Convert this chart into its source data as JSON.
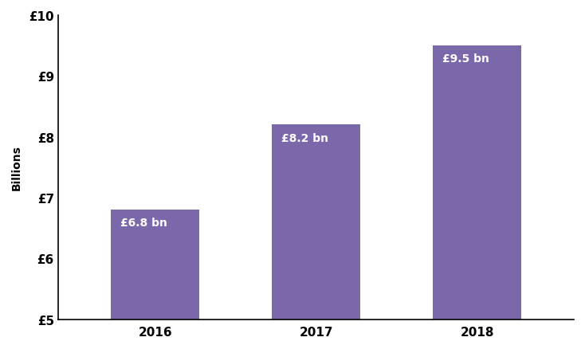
{
  "categories": [
    "2016",
    "2017",
    "2018"
  ],
  "values": [
    6.8,
    8.2,
    9.5
  ],
  "bar_color": "#7b68aa",
  "bar_labels": [
    "£6.8 bn",
    "£8.2 bn",
    "£9.5 bn"
  ],
  "ylabel": "Billions",
  "ylim": [
    5,
    10
  ],
  "yticks": [
    5,
    6,
    7,
    8,
    9,
    10
  ],
  "ytick_labels": [
    "£5",
    "£6",
    "£7",
    "£8",
    "£9",
    "£10"
  ],
  "background_color": "#ffffff",
  "label_color": "#ffffff",
  "label_fontsize": 10,
  "ylabel_fontsize": 10,
  "xtick_fontsize": 11,
  "ytick_fontsize": 11,
  "bar_width": 0.55,
  "spine_color": "#000000",
  "tick_color": "#000000"
}
